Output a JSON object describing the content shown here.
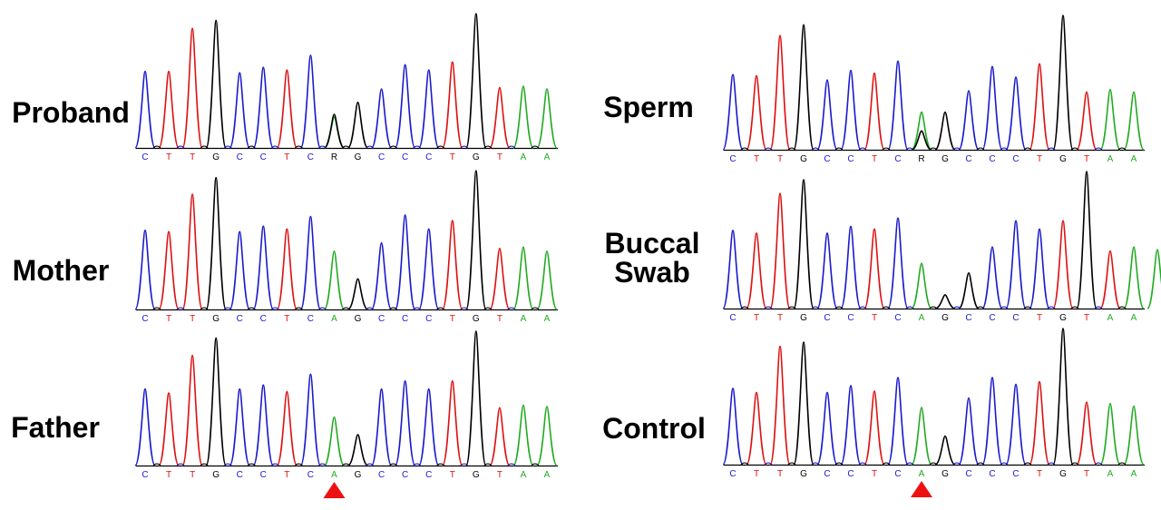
{
  "chart_data": {
    "type": "line",
    "description_free": true,
    "base_colors": {
      "A": "#22aa22",
      "C": "#1a1acc",
      "G": "#000000",
      "T": "#dd1111",
      "R": "#000000"
    },
    "marker_color": "#ee1111",
    "panels": [
      {
        "label": "Proband",
        "bases": [
          "C",
          "T",
          "T",
          "G",
          "C",
          "C",
          "T",
          "C",
          "R",
          "G",
          "C",
          "C",
          "C",
          "T",
          "G",
          "T",
          "A",
          "A"
        ],
        "peaks": [
          {
            "base": "C",
            "h": 0.57
          },
          {
            "base": "T",
            "h": 0.57
          },
          {
            "base": "T",
            "h": 0.89
          },
          {
            "base": "G",
            "h": 0.95
          },
          {
            "base": "C",
            "h": 0.56
          },
          {
            "base": "C",
            "h": 0.6
          },
          {
            "base": "T",
            "h": 0.58
          },
          {
            "base": "C",
            "h": 0.69
          },
          {
            "base": "A",
            "h": 0.23
          },
          {
            "base": "G",
            "h": 0.25
          },
          {
            "base": "G",
            "h": 0.34
          },
          {
            "base": "C",
            "h": 0.44
          },
          {
            "base": "C",
            "h": 0.62
          },
          {
            "base": "C",
            "h": 0.58
          },
          {
            "base": "T",
            "h": 0.64
          },
          {
            "base": "G",
            "h": 1.0
          },
          {
            "base": "T",
            "h": 0.45
          },
          {
            "base": "A",
            "h": 0.46
          },
          {
            "base": "A",
            "h": 0.44
          }
        ]
      },
      {
        "label": "Mother",
        "bases": [
          "C",
          "T",
          "T",
          "G",
          "C",
          "C",
          "T",
          "C",
          "A",
          "G",
          "C",
          "C",
          "C",
          "T",
          "G",
          "T",
          "A",
          "A"
        ],
        "peaks": [
          {
            "base": "C",
            "h": 0.57
          },
          {
            "base": "T",
            "h": 0.56
          },
          {
            "base": "T",
            "h": 0.83
          },
          {
            "base": "G",
            "h": 0.95
          },
          {
            "base": "C",
            "h": 0.56
          },
          {
            "base": "C",
            "h": 0.6
          },
          {
            "base": "T",
            "h": 0.58
          },
          {
            "base": "C",
            "h": 0.67
          },
          {
            "base": "A",
            "h": 0.42
          },
          {
            "base": "G",
            "h": 0.22
          },
          {
            "base": "C",
            "h": 0.48
          },
          {
            "base": "C",
            "h": 0.68
          },
          {
            "base": "C",
            "h": 0.58
          },
          {
            "base": "T",
            "h": 0.64
          },
          {
            "base": "G",
            "h": 1.0
          },
          {
            "base": "T",
            "h": 0.44
          },
          {
            "base": "A",
            "h": 0.45
          },
          {
            "base": "A",
            "h": 0.42
          }
        ]
      },
      {
        "label": "Father",
        "bases": [
          "C",
          "T",
          "T",
          "G",
          "C",
          "C",
          "T",
          "C",
          "A",
          "G",
          "C",
          "C",
          "C",
          "T",
          "G",
          "T",
          "A",
          "A"
        ],
        "peaks": [
          {
            "base": "C",
            "h": 0.57
          },
          {
            "base": "T",
            "h": 0.54
          },
          {
            "base": "T",
            "h": 0.82
          },
          {
            "base": "G",
            "h": 0.95
          },
          {
            "base": "C",
            "h": 0.57
          },
          {
            "base": "C",
            "h": 0.6
          },
          {
            "base": "T",
            "h": 0.55
          },
          {
            "base": "C",
            "h": 0.68
          },
          {
            "base": "A",
            "h": 0.36
          },
          {
            "base": "G",
            "h": 0.23
          },
          {
            "base": "C",
            "h": 0.57
          },
          {
            "base": "C",
            "h": 0.63
          },
          {
            "base": "C",
            "h": 0.57
          },
          {
            "base": "T",
            "h": 0.63
          },
          {
            "base": "G",
            "h": 1.0
          },
          {
            "base": "T",
            "h": 0.43
          },
          {
            "base": "A",
            "h": 0.45
          },
          {
            "base": "A",
            "h": 0.44
          }
        ]
      },
      {
        "label": "Sperm",
        "bases": [
          "C",
          "T",
          "T",
          "G",
          "C",
          "C",
          "T",
          "C",
          "R",
          "G",
          "C",
          "C",
          "C",
          "T",
          "G",
          "T",
          "A",
          "A"
        ],
        "peaks": [
          {
            "base": "C",
            "h": 0.56
          },
          {
            "base": "T",
            "h": 0.55
          },
          {
            "base": "T",
            "h": 0.85
          },
          {
            "base": "G",
            "h": 0.93
          },
          {
            "base": "C",
            "h": 0.52
          },
          {
            "base": "C",
            "h": 0.59
          },
          {
            "base": "T",
            "h": 0.57
          },
          {
            "base": "C",
            "h": 0.66
          },
          {
            "base": "A",
            "h": 0.28
          },
          {
            "base": "G",
            "h": 0.14
          },
          {
            "base": "G",
            "h": 0.28
          },
          {
            "base": "C",
            "h": 0.44
          },
          {
            "base": "C",
            "h": 0.62
          },
          {
            "base": "C",
            "h": 0.54
          },
          {
            "base": "T",
            "h": 0.64
          },
          {
            "base": "G",
            "h": 1.0
          },
          {
            "base": "T",
            "h": 0.43
          },
          {
            "base": "A",
            "h": 0.45
          },
          {
            "base": "A",
            "h": 0.43
          }
        ]
      },
      {
        "label": "Buccal Swab",
        "bases": [
          "C",
          "T",
          "T",
          "G",
          "C",
          "C",
          "T",
          "C",
          "A",
          "G",
          "C",
          "C",
          "C",
          "T",
          "G",
          "T",
          "A",
          "A"
        ],
        "peaks": [
          {
            "base": "C",
            "h": 0.57
          },
          {
            "base": "T",
            "h": 0.55
          },
          {
            "base": "T",
            "h": 0.84
          },
          {
            "base": "G",
            "h": 0.94
          },
          {
            "base": "C",
            "h": 0.55
          },
          {
            "base": "C",
            "h": 0.6
          },
          {
            "base": "T",
            "h": 0.58
          },
          {
            "base": "C",
            "h": 0.66
          },
          {
            "base": "A",
            "h": 0.33
          },
          {
            "base": "G",
            "h": 0.1
          },
          {
            "base": "G",
            "h": 0.26
          },
          {
            "base": "C",
            "h": 0.45
          },
          {
            "base": "C",
            "h": 0.64
          },
          {
            "base": "C",
            "h": 0.58
          },
          {
            "base": "T",
            "h": 0.64
          },
          {
            "base": "G",
            "h": 1.0
          },
          {
            "base": "T",
            "h": 0.42
          },
          {
            "base": "A",
            "h": 0.45
          },
          {
            "base": "A",
            "h": 0.43
          }
        ]
      },
      {
        "label": "Control",
        "bases": [
          "C",
          "T",
          "T",
          "G",
          "C",
          "C",
          "T",
          "C",
          "A",
          "G",
          "C",
          "C",
          "C",
          "T",
          "G",
          "T",
          "A",
          "A"
        ],
        "peaks": [
          {
            "base": "C",
            "h": 0.56
          },
          {
            "base": "T",
            "h": 0.53
          },
          {
            "base": "T",
            "h": 0.87
          },
          {
            "base": "G",
            "h": 0.9
          },
          {
            "base": "C",
            "h": 0.53
          },
          {
            "base": "C",
            "h": 0.58
          },
          {
            "base": "T",
            "h": 0.54
          },
          {
            "base": "C",
            "h": 0.64
          },
          {
            "base": "A",
            "h": 0.42
          },
          {
            "base": "G",
            "h": 0.21
          },
          {
            "base": "C",
            "h": 0.49
          },
          {
            "base": "C",
            "h": 0.64
          },
          {
            "base": "C",
            "h": 0.59
          },
          {
            "base": "T",
            "h": 0.61
          },
          {
            "base": "G",
            "h": 1.0
          },
          {
            "base": "T",
            "h": 0.46
          },
          {
            "base": "A",
            "h": 0.45
          },
          {
            "base": "A",
            "h": 0.43
          }
        ]
      }
    ]
  }
}
